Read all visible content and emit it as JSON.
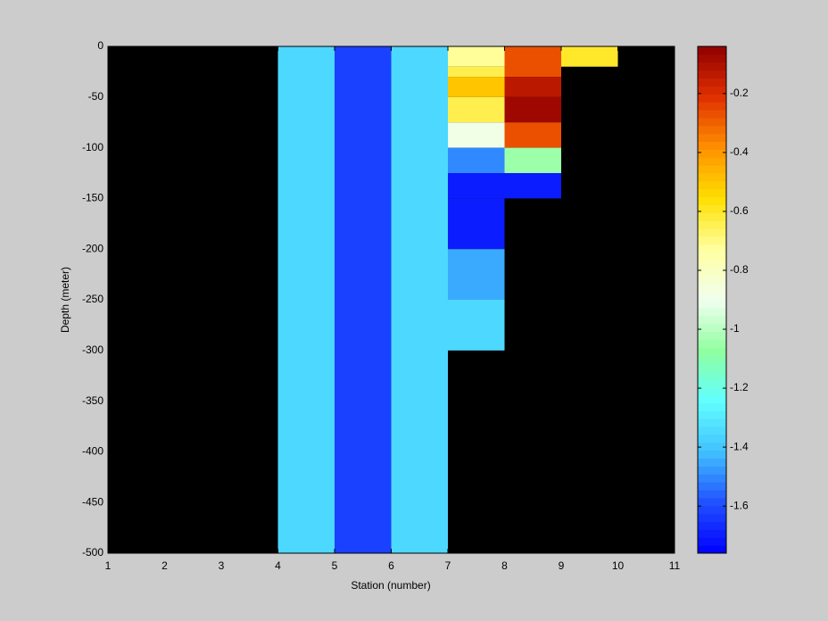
{
  "chart_data": {
    "type": "heatmap",
    "xlabel": "Station (number)",
    "ylabel": "Depth (meter)",
    "xlim": [
      1,
      11
    ],
    "ylim": [
      -500,
      0
    ],
    "xticks": [
      1,
      2,
      3,
      4,
      5,
      6,
      7,
      8,
      9,
      10,
      11
    ],
    "yticks": [
      0,
      -50,
      -100,
      -150,
      -200,
      -250,
      -300,
      -350,
      -400,
      -450,
      -500
    ],
    "background": "#000000",
    "colormap": [
      "#0000ff",
      "#2050ff",
      "#40c0ff",
      "#60ffff",
      "#90ffa0",
      "#f0fff0",
      "#ffffa0",
      "#ffe000",
      "#ff9000",
      "#e03000",
      "#900000"
    ],
    "clim": [
      -1.76,
      -0.04
    ],
    "cticks": [
      -0.2,
      -0.4,
      -0.6,
      -0.8,
      -1,
      -1.2,
      -1.4,
      -1.6
    ],
    "cells": [
      {
        "x": [
          4,
          5
        ],
        "y": [
          0,
          -500
        ],
        "value": -1.35
      },
      {
        "x": [
          5,
          6
        ],
        "y": [
          0,
          -500
        ],
        "value": -1.62
      },
      {
        "x": [
          6,
          7
        ],
        "y": [
          0,
          -500
        ],
        "value": -1.35
      },
      {
        "x": [
          7,
          8
        ],
        "y": [
          0,
          -20
        ],
        "value": -0.72
      },
      {
        "x": [
          7,
          8
        ],
        "y": [
          -20,
          -30
        ],
        "value": -0.64
      },
      {
        "x": [
          7,
          8
        ],
        "y": [
          -30,
          -50
        ],
        "value": -0.5
      },
      {
        "x": [
          7,
          8
        ],
        "y": [
          -50,
          -75
        ],
        "value": -0.64
      },
      {
        "x": [
          7,
          8
        ],
        "y": [
          -75,
          -100
        ],
        "value": -0.88
      },
      {
        "x": [
          7,
          8
        ],
        "y": [
          -100,
          -125
        ],
        "value": -1.5
      },
      {
        "x": [
          7,
          8
        ],
        "y": [
          -125,
          -150
        ],
        "value": -1.7
      },
      {
        "x": [
          7,
          8
        ],
        "y": [
          -150,
          -200
        ],
        "value": -1.7
      },
      {
        "x": [
          7,
          8
        ],
        "y": [
          -200,
          -250
        ],
        "value": -1.45
      },
      {
        "x": [
          7,
          8
        ],
        "y": [
          -250,
          -300
        ],
        "value": -1.35
      },
      {
        "x": [
          8,
          9
        ],
        "y": [
          0,
          -30
        ],
        "value": -0.27
      },
      {
        "x": [
          8,
          9
        ],
        "y": [
          -30,
          -50
        ],
        "value": -0.13
      },
      {
        "x": [
          8,
          9
        ],
        "y": [
          -50,
          -75
        ],
        "value": -0.07
      },
      {
        "x": [
          8,
          9
        ],
        "y": [
          -75,
          -100
        ],
        "value": -0.27
      },
      {
        "x": [
          8,
          9
        ],
        "y": [
          -100,
          -125
        ],
        "value": -1.05
      },
      {
        "x": [
          8,
          9
        ],
        "y": [
          -125,
          -150
        ],
        "value": -1.7
      },
      {
        "x": [
          9,
          10
        ],
        "y": [
          0,
          -20
        ],
        "value": -0.6
      }
    ]
  }
}
